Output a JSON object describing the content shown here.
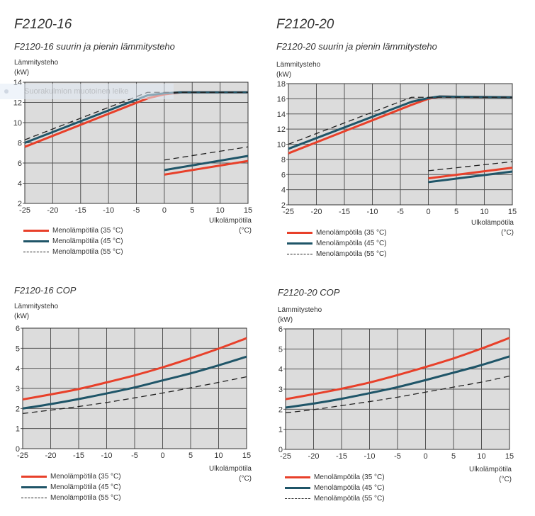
{
  "colors": {
    "t35": "#e8402a",
    "t45": "#1f5568",
    "t55": "#222222",
    "plot_bg": "#dcdcdc",
    "grid": "#555555"
  },
  "overlay": {
    "text": "Suorakulmion muotoinen leike"
  },
  "legend_labels": [
    "Menolämpötila (35 °C)",
    "Menolämpötila (45 °C)",
    "Menolämpötila (55 °C)"
  ],
  "chart_data": [
    {
      "type": "line",
      "heading": "F2120-16",
      "title": "F2120-16 suurin ja pienin lämmitysteho",
      "ylabel": [
        "Lämmitysteho",
        "(kW)"
      ],
      "xlabel": [
        "Ulkolämpötila",
        "(°C)"
      ],
      "xlim": [
        -25,
        15
      ],
      "ylim": [
        2,
        14
      ],
      "grid": true,
      "legend": "bottom-left",
      "xticks": [
        "-25",
        "-20",
        "-15",
        "-10",
        "-5",
        "0",
        "5",
        "10",
        "15"
      ],
      "yticks": [
        "2",
        "4",
        "6",
        "8",
        "10",
        "12",
        "14"
      ],
      "series": [
        {
          "name": "Menolämpötila (35 °C)",
          "style": "solid",
          "segments": [
            [
              [
                -25,
                7.6
              ],
              [
                -3,
                12.4
              ],
              [
                0,
                12.8
              ],
              [
                3,
                13.0
              ],
              [
                15,
                13.0
              ]
            ],
            [
              [
                0,
                4.85
              ],
              [
                15,
                6.2
              ]
            ]
          ]
        },
        {
          "name": "Menolämpötila (45 °C)",
          "style": "solid",
          "segments": [
            [
              [
                -25,
                8.0
              ],
              [
                -3,
                12.7
              ],
              [
                0,
                12.9
              ],
              [
                3,
                13.0
              ],
              [
                15,
                13.0
              ]
            ],
            [
              [
                0,
                5.3
              ],
              [
                15,
                6.7
              ]
            ]
          ]
        },
        {
          "name": "Menolämpötila (55 °C)",
          "style": "dashed",
          "segments": [
            [
              [
                -25,
                8.3
              ],
              [
                -3,
                13.0
              ],
              [
                15,
                13.0
              ]
            ],
            [
              [
                0,
                6.3
              ],
              [
                15,
                7.6
              ]
            ]
          ]
        }
      ]
    },
    {
      "type": "line",
      "heading": "F2120-20",
      "title": "F2120-20 suurin ja pienin lämmitysteho",
      "ylabel": [
        "Lämmitysteho",
        "(kW)"
      ],
      "xlabel": [
        "Ulkolämpötila",
        "(°C)"
      ],
      "xlim": [
        -25,
        15
      ],
      "ylim": [
        2,
        18
      ],
      "grid": true,
      "legend": "bottom-left",
      "xticks": [
        "-25",
        "-20",
        "-15",
        "-10",
        "-5",
        "0",
        "5",
        "10",
        "15"
      ],
      "yticks": [
        "2",
        "4",
        "6",
        "8",
        "10",
        "12",
        "14",
        "16",
        "18"
      ],
      "series": [
        {
          "name": "Menolämpötila (35 °C)",
          "style": "solid",
          "segments": [
            [
              [
                -25,
                8.8
              ],
              [
                -3,
                15.2
              ],
              [
                0,
                16.0
              ],
              [
                2,
                16.3
              ],
              [
                15,
                16.2
              ]
            ],
            [
              [
                0,
                5.5
              ],
              [
                15,
                6.9
              ]
            ]
          ]
        },
        {
          "name": "Menolämpötila (45 °C)",
          "style": "solid",
          "segments": [
            [
              [
                -25,
                9.4
              ],
              [
                -3,
                15.6
              ],
              [
                0,
                16.1
              ],
              [
                2,
                16.3
              ],
              [
                15,
                16.2
              ]
            ],
            [
              [
                0,
                5.0
              ],
              [
                15,
                6.4
              ]
            ]
          ]
        },
        {
          "name": "Menolämpötila (55 °C)",
          "style": "dashed",
          "segments": [
            [
              [
                -25,
                10.0
              ],
              [
                -3,
                16.2
              ],
              [
                15,
                16.2
              ]
            ],
            [
              [
                0,
                6.5
              ],
              [
                15,
                7.7
              ]
            ]
          ]
        }
      ]
    },
    {
      "type": "line",
      "title": "F2120-16 COP",
      "ylabel": [
        "Lämmitysteho",
        "(kW)"
      ],
      "xlabel": [
        "Ulkolämpötila",
        "(°C)"
      ],
      "xlim": [
        -25,
        15
      ],
      "ylim": [
        0,
        6
      ],
      "grid": true,
      "legend": "bottom-left",
      "xticks": [
        "-25",
        "-20",
        "-15",
        "-10",
        "-5",
        "0",
        "5",
        "10",
        "15"
      ],
      "yticks": [
        "0",
        "1",
        "2",
        "3",
        "4",
        "5",
        "6"
      ],
      "x": [
        -25,
        -20,
        -15,
        -10,
        -5,
        0,
        5,
        10,
        15
      ],
      "series": [
        {
          "name": "Menolämpötila (35 °C)",
          "style": "solid",
          "values": [
            2.45,
            2.7,
            2.97,
            3.3,
            3.65,
            4.05,
            4.5,
            4.98,
            5.5
          ]
        },
        {
          "name": "Menolämpötila (45 °C)",
          "style": "solid",
          "values": [
            2.0,
            2.22,
            2.47,
            2.75,
            3.05,
            3.4,
            3.75,
            4.15,
            4.58
          ]
        },
        {
          "name": "Menolämpötila (55 °C)",
          "style": "dashed",
          "values": [
            1.75,
            1.92,
            2.1,
            2.3,
            2.53,
            2.77,
            3.03,
            3.3,
            3.58
          ]
        }
      ]
    },
    {
      "type": "line",
      "title": "F2120-20 COP",
      "ylabel": [
        "Lämmitysteho",
        "(kW)"
      ],
      "xlabel": [
        "Ulkolämpötila",
        "(°C)"
      ],
      "xlim": [
        -25,
        15
      ],
      "ylim": [
        0,
        6
      ],
      "grid": true,
      "legend": "bottom-left",
      "xticks": [
        "-25",
        "-20",
        "-15",
        "-10",
        "-5",
        "0",
        "5",
        "10",
        "15"
      ],
      "yticks": [
        "0",
        "1",
        "2",
        "3",
        "4",
        "5",
        "6"
      ],
      "x": [
        -25,
        -20,
        -15,
        -10,
        -5,
        0,
        5,
        10,
        15
      ],
      "series": [
        {
          "name": "Menolämpötila (35 °C)",
          "style": "solid",
          "values": [
            2.5,
            2.75,
            3.02,
            3.33,
            3.7,
            4.1,
            4.53,
            5.02,
            5.55
          ]
        },
        {
          "name": "Menolämpötila (45 °C)",
          "style": "solid",
          "values": [
            2.08,
            2.28,
            2.52,
            2.8,
            3.1,
            3.45,
            3.82,
            4.2,
            4.63
          ]
        },
        {
          "name": "Menolämpötila (55 °C)",
          "style": "dashed",
          "values": [
            1.82,
            1.98,
            2.18,
            2.38,
            2.6,
            2.85,
            3.1,
            3.35,
            3.65
          ]
        }
      ]
    }
  ]
}
